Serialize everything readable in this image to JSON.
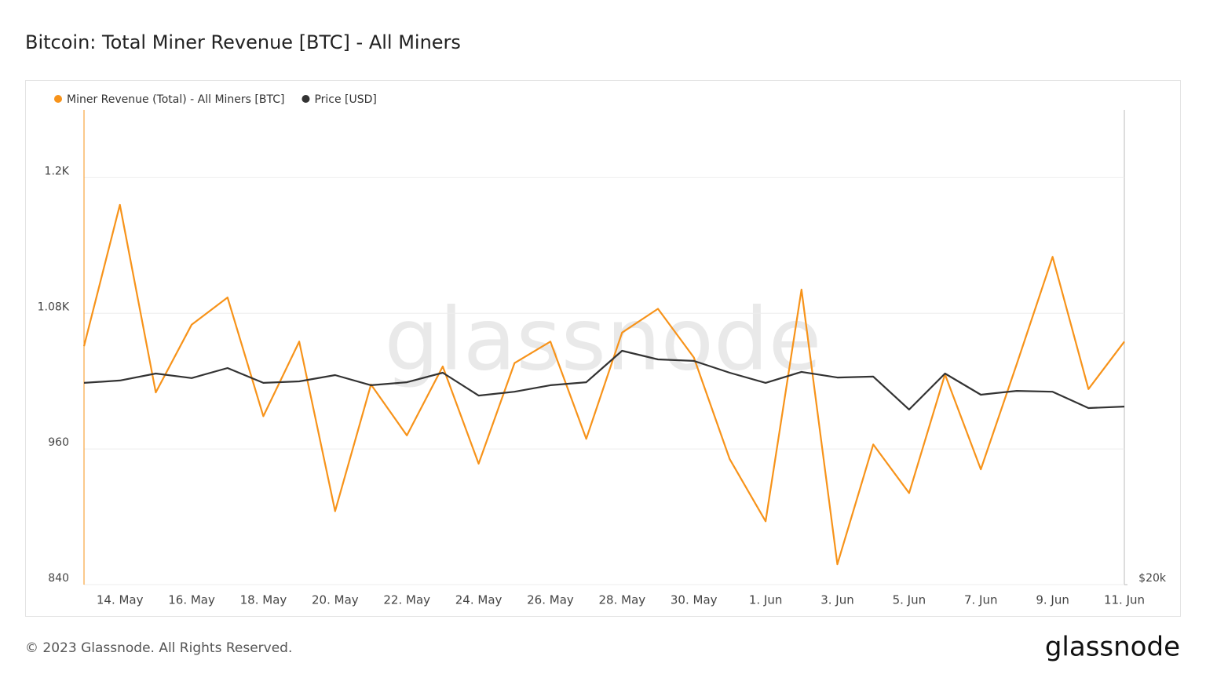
{
  "chart_data": {
    "type": "line",
    "title": "Bitcoin: Total Miner Revenue [BTC] - All Miners",
    "categories": [
      null,
      "14. May",
      null,
      "16. May",
      null,
      "18. May",
      null,
      "20. May",
      null,
      "22. May",
      null,
      "24. May",
      null,
      "26. May",
      null,
      "28. May",
      null,
      "30. May",
      null,
      "1. Jun",
      null,
      "3. Jun",
      null,
      "5. Jun",
      null,
      "7. Jun",
      null,
      "9. Jun",
      null,
      "11. Jun"
    ],
    "series": [
      {
        "name": "Miner Revenue (Total) - All Miners [BTC]",
        "color": "#f7931a",
        "values": [
          1051,
          1176,
          1010,
          1070,
          1094,
          989,
          1055,
          905,
          1017,
          972,
          1033,
          947,
          1036,
          1055,
          969,
          1063,
          1084,
          1041,
          951,
          896,
          1101,
          858,
          964,
          921,
          1026,
          942,
          1035,
          1130,
          1013,
          1055
        ]
      },
      {
        "name": "Price [USD]",
        "color": "#333333",
        "axis": "y2",
        "values": [
          26800,
          26880,
          27115,
          26960,
          27300,
          26800,
          26850,
          27060,
          26720,
          26820,
          27140,
          26370,
          26500,
          26720,
          26820,
          27880,
          27590,
          27540,
          27140,
          26800,
          27170,
          26980,
          27010,
          25900,
          27115,
          26400,
          26530,
          26500,
          25950,
          26000
        ]
      }
    ],
    "ylim": [
      840,
      1260
    ],
    "yticks": [
      840,
      960,
      {
        "value": 1080,
        "label": "1.08K"
      },
      {
        "value": 1200,
        "label": "1.2K"
      }
    ],
    "y2lim": [
      20000,
      36000
    ],
    "y2ticks": [
      {
        "value": 20000,
        "label": "$20k"
      }
    ],
    "grid": true
  },
  "watermark": "glassnode",
  "footer": "© 2023 Glassnode. All Rights Reserved.",
  "logo": "glassnode"
}
